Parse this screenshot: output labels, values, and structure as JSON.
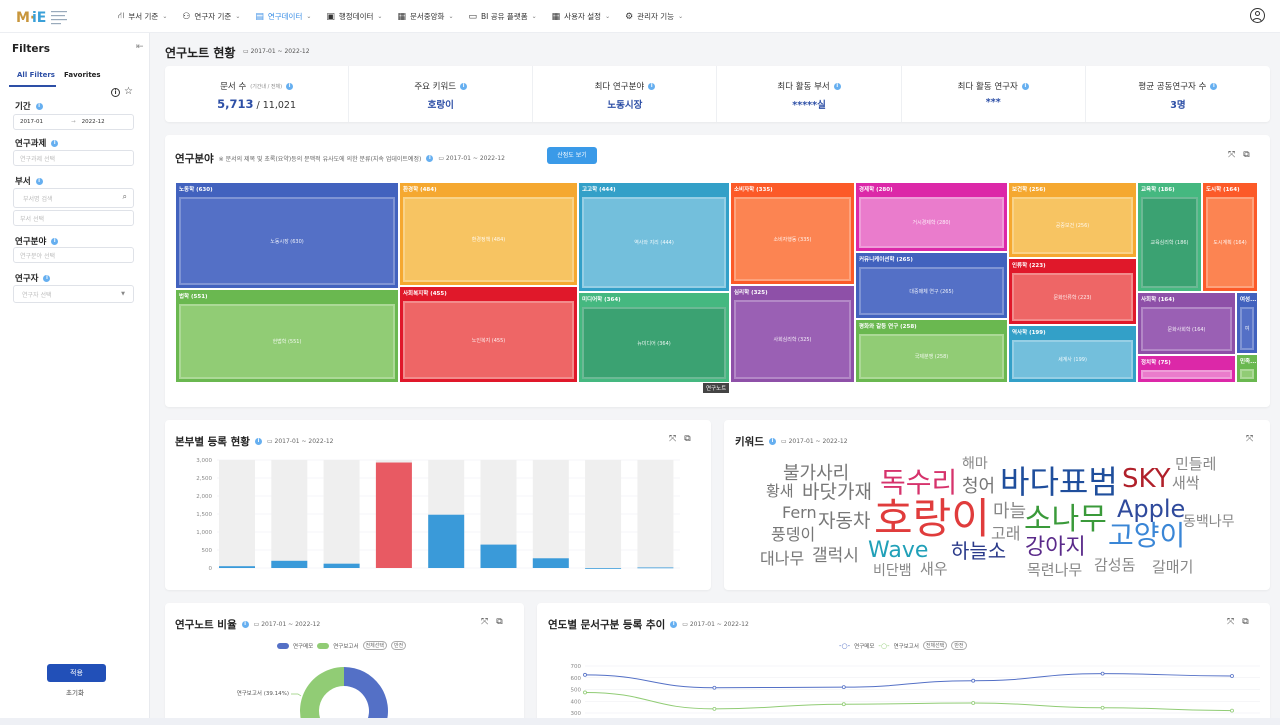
{
  "nav": {
    "logo_text": "M·iE",
    "items": [
      {
        "label": "부서 기준",
        "icon": "org-chart-icon",
        "active": false
      },
      {
        "label": "연구자 기준",
        "icon": "users-icon",
        "active": false
      },
      {
        "label": "연구데이터",
        "icon": "document-icon",
        "active": true
      },
      {
        "label": "행정데이터",
        "icon": "clipboard-icon",
        "active": false
      },
      {
        "label": "문서중앙화",
        "icon": "file-cabinet-icon",
        "active": false
      },
      {
        "label": "BI 공유 플랫폼",
        "icon": "monitor-icon",
        "active": false
      },
      {
        "label": "사용자 설정",
        "icon": "grid-icon",
        "active": false
      },
      {
        "label": "관리자 기능",
        "icon": "gear-icon",
        "active": false
      }
    ],
    "user_icon": "user-circle-icon",
    "active_color": "#3a8ee6"
  },
  "sidebar": {
    "title": "Filters",
    "tabs": [
      "All Filters",
      "Favorites"
    ],
    "period": {
      "label": "기간",
      "start": "2017-01",
      "end": "2022-12"
    },
    "project": {
      "label": "연구과제",
      "placeholder": "연구과제 선택"
    },
    "dept": {
      "label": "부서",
      "search_placeholder": "부서명 검색",
      "select_placeholder": "부서 선택"
    },
    "field": {
      "label": "연구분야",
      "placeholder": "연구분야 선택"
    },
    "researcher": {
      "label": "연구자",
      "placeholder": "연구자 선택"
    },
    "apply": "적용",
    "reset": "초기화"
  },
  "page": {
    "title": "연구노트 현황",
    "date": "2017-01 ~ 2022-12"
  },
  "kpis": [
    {
      "label": "문서 수",
      "sub": "(기간내 / 전체)",
      "value": "5,713",
      "total": "/ 11,021"
    },
    {
      "label": "주요 키워드",
      "value": "호랑이"
    },
    {
      "label": "최다 연구분야",
      "value": "노동시장"
    },
    {
      "label": "최다 활동 부서",
      "value": "*****실"
    },
    {
      "label": "최다 활동 연구자",
      "value": "***"
    },
    {
      "label": "평균 공동연구자 수",
      "value": "3명"
    }
  ],
  "treemap_card": {
    "title": "연구분야",
    "note": "※ 문서의 제목 및 초록(요약)등의 문맥적 유사도에 의한 분류(지속 업데이트예정)",
    "date": "2017-01 ~ 2022-12",
    "scatter_button": "산점도 보기",
    "tooltip": "연구노트"
  },
  "chart_data": [
    {
      "type": "treemap",
      "groups": [
        {
          "name": "노동학",
          "value": 630,
          "child": "노동시장 (630)",
          "color": "#4262be",
          "inner": "#5470c6"
        },
        {
          "name": "법학",
          "value": 551,
          "child": "헌법학 (551)",
          "color": "#6ab850",
          "inner": "#91cc75"
        },
        {
          "name": "환경학",
          "value": 484,
          "child": "환경정책 (484)",
          "color": "#f5a830",
          "inner": "#f7c462"
        },
        {
          "name": "사회복지학",
          "value": 455,
          "child": "노인복지 (455)",
          "color": "#e0182a",
          "inner": "#ee6666"
        },
        {
          "name": "고고학",
          "value": 444,
          "child": "역사와 지리 (444)",
          "color": "#33a0c8",
          "inner": "#73bfdc"
        },
        {
          "name": "미디어학",
          "value": 364,
          "child": "뉴미디어 (364)",
          "color": "#45b880",
          "inner": "#3ba272"
        },
        {
          "name": "소비자학",
          "value": 335,
          "child": "소비자행동 (335)",
          "color": "#fc5a28",
          "inner": "#fc8452"
        },
        {
          "name": "심리학",
          "value": 325,
          "child": "사회심리학 (325)",
          "color": "#8e50a8",
          "inner": "#9a60b4"
        },
        {
          "name": "경제학",
          "value": 280,
          "child": "거시경제학 (280)",
          "color": "#dc28a8",
          "inner": "#ea7ccc"
        },
        {
          "name": "커뮤니케이션학",
          "value": 265,
          "child": "대중매체 연구 (265)",
          "color": "#4262be",
          "inner": "#5470c6"
        },
        {
          "name": "평화와 갈등 연구",
          "value": 258,
          "child": "국제분쟁 (258)",
          "color": "#6ab850",
          "inner": "#91cc75"
        },
        {
          "name": "보건학",
          "value": 256,
          "child": "공중보건 (256)",
          "color": "#f5a830",
          "inner": "#f7c462"
        },
        {
          "name": "인류학",
          "value": 223,
          "child": "문화인류학 (223)",
          "color": "#e0182a",
          "inner": "#ee6666"
        },
        {
          "name": "역사학",
          "value": 199,
          "child": "세계사 (199)",
          "color": "#33a0c8",
          "inner": "#73bfdc"
        },
        {
          "name": "교육학",
          "value": 186,
          "child": "교육심리학 (186)",
          "color": "#45b880",
          "inner": "#3ba272"
        },
        {
          "name": "도시학",
          "value": 164,
          "child": "도시계획 (164)",
          "color": "#fc5a28",
          "inner": "#fc8452"
        },
        {
          "name": "사회학",
          "value": 164,
          "child": "문화사회학 (164)",
          "color": "#8e50a8",
          "inner": "#9a60b4"
        },
        {
          "name": "여성...",
          "value": null,
          "child": "여",
          "color": "#4262be",
          "inner": "#5470c6"
        },
        {
          "name": "정치학",
          "value": 75,
          "child": "",
          "color": "#dc28a8",
          "inner": "#ea7ccc"
        },
        {
          "name": "민족...",
          "value": null,
          "child": "",
          "color": "#6ab850",
          "inner": "#91cc75"
        }
      ]
    },
    {
      "type": "bar",
      "title": "본부별 등록 현황",
      "date": "2017-01 ~ 2022-12",
      "ylim": [
        0,
        3000
      ],
      "yticks": [
        "3,000",
        "2,500",
        "2,000",
        "1,500",
        "1,000",
        "500",
        "0"
      ],
      "values": [
        50,
        200,
        120,
        2930,
        1480,
        650,
        270,
        0,
        15
      ],
      "bar_color": "#3a9ad9",
      "highlight_color": "#e85a63",
      "background_color": "#efefef",
      "grid": true
    },
    {
      "type": "pie",
      "title": "연구노트 비율",
      "date": "2017-01 ~ 2022-12",
      "donut": true,
      "series": [
        {
          "name": "연구메모",
          "value": 60.86,
          "color": "#5470c6"
        },
        {
          "name": "연구보고서",
          "value": 39.14,
          "color": "#91cc75"
        }
      ],
      "slice_label": "연구보고서 (39.14%)",
      "legend_buttons": [
        "전체선택",
        "반전"
      ],
      "legend_position": "top"
    },
    {
      "type": "line",
      "title": "연도별 문서구분 등록 추이",
      "date": "2017-01 ~ 2022-12",
      "yticks": [
        700,
        600,
        500,
        400,
        300
      ],
      "series": [
        {
          "name": "연구메모",
          "values": [
            625,
            515,
            520,
            575,
            635,
            615
          ],
          "color": "#5470c6"
        },
        {
          "name": "연구보고서",
          "values": [
            475,
            335,
            375,
            385,
            345,
            320
          ],
          "color": "#91cc75"
        }
      ],
      "legend_buttons": [
        "전체선택",
        "반전"
      ],
      "legend_position": "top",
      "smooth": true
    }
  ],
  "wordcloud": {
    "title": "키워드",
    "date": "2017-01 ~ 2022-12",
    "words": [
      {
        "text": "불가사리",
        "color": "#777"
      },
      {
        "text": "해마",
        "color": "#888"
      },
      {
        "text": "민들레",
        "color": "#888"
      },
      {
        "text": "독수리",
        "color": "#d6336c"
      },
      {
        "text": "바다표범",
        "color": "#1f4e9c"
      },
      {
        "text": "SKY",
        "color": "#b0202a"
      },
      {
        "text": "청어",
        "color": "#777"
      },
      {
        "text": "새싹",
        "color": "#888"
      },
      {
        "text": "황새",
        "color": "#777"
      },
      {
        "text": "바닷가재",
        "color": "#777"
      },
      {
        "text": "Fern",
        "color": "#777"
      },
      {
        "text": "호랑이",
        "color": "#e03c3c"
      },
      {
        "text": "마늘",
        "color": "#888"
      },
      {
        "text": "소나무",
        "color": "#3a9a3a"
      },
      {
        "text": "Apple",
        "color": "#2f4a9c"
      },
      {
        "text": "자동차",
        "color": "#777"
      },
      {
        "text": "동백나무",
        "color": "#888"
      },
      {
        "text": "풍뎅이",
        "color": "#777"
      },
      {
        "text": "고래",
        "color": "#888"
      },
      {
        "text": "고양이",
        "color": "#3a86d6"
      },
      {
        "text": "Wave",
        "color": "#20a0b8"
      },
      {
        "text": "하늘소",
        "color": "#2a3a8a"
      },
      {
        "text": "강아지",
        "color": "#5a2a8a"
      },
      {
        "text": "대나무",
        "color": "#777"
      },
      {
        "text": "갤럭시",
        "color": "#777"
      },
      {
        "text": "감성돔",
        "color": "#888"
      },
      {
        "text": "비단뱀",
        "color": "#888"
      },
      {
        "text": "새우",
        "color": "#888"
      },
      {
        "text": "목련나무",
        "color": "#888"
      },
      {
        "text": "갈매기",
        "color": "#888"
      }
    ]
  }
}
